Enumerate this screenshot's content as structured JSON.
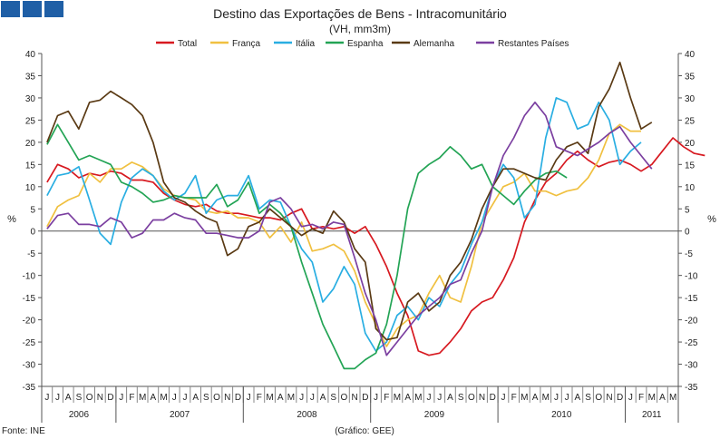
{
  "chart_data": {
    "type": "line",
    "title": "Destino das Exportações de Bens - Intracomunitário",
    "subtitle": "(VH, mm3m)",
    "ylabel_left": "%",
    "ylabel_right": "%",
    "ylim": [
      -35,
      40
    ],
    "yticks": [
      40,
      35,
      30,
      25,
      20,
      15,
      10,
      5,
      0,
      -5,
      -10,
      -15,
      -20,
      -25,
      -30,
      -35
    ],
    "month_letters": [
      "J",
      "J",
      "A",
      "S",
      "O",
      "N",
      "D",
      "J",
      "F",
      "M",
      "A",
      "M",
      "J",
      "J",
      "A",
      "S",
      "O",
      "N",
      "D",
      "J",
      "F",
      "M",
      "A",
      "M",
      "J",
      "J",
      "A",
      "S",
      "O",
      "N",
      "D",
      "J",
      "F",
      "M",
      "A",
      "M",
      "J",
      "J",
      "A",
      "S",
      "O",
      "N",
      "D",
      "J",
      "F",
      "M",
      "A",
      "M",
      "J",
      "J",
      "A",
      "S",
      "O",
      "N",
      "D",
      "J",
      "F",
      "M",
      "A",
      "M"
    ],
    "years": [
      {
        "label": "2006",
        "months": 7
      },
      {
        "label": "2007",
        "months": 12
      },
      {
        "label": "2008",
        "months": 12
      },
      {
        "label": "2009",
        "months": 12
      },
      {
        "label": "2010",
        "months": 12
      },
      {
        "label": "2011",
        "months": 5
      }
    ],
    "series": [
      {
        "name": "Total",
        "color": "#d71920",
        "values": [
          11,
          15,
          14,
          12,
          13,
          12.5,
          13.5,
          13,
          11.5,
          11.5,
          11,
          8.5,
          7,
          6,
          5.5,
          6,
          4.5,
          4,
          4,
          3.5,
          3,
          3,
          2.5,
          4,
          5,
          0.5,
          1,
          0.5,
          1,
          -0.5,
          1,
          -3,
          -8,
          -14,
          -19,
          -27,
          -28,
          -27.5,
          -25,
          -22,
          -18,
          -16,
          -15,
          -11,
          -6,
          2,
          7,
          11,
          13,
          16,
          18,
          16,
          14.5,
          15.5,
          16,
          15,
          13.5,
          15,
          18,
          21,
          19,
          17.5,
          17
        ]
      },
      {
        "name": "França",
        "color": "#f0c040",
        "values": [
          1,
          5.5,
          7,
          8,
          13,
          11,
          14,
          14,
          15.5,
          14.5,
          12.5,
          9.5,
          8,
          7.5,
          7,
          4.5,
          4,
          4.5,
          3,
          3,
          2,
          -1.5,
          1,
          -2.5,
          2,
          -4.5,
          -4,
          -3,
          -4.5,
          -9,
          -16,
          -21,
          -26,
          -22,
          -20,
          -19,
          -14,
          -10,
          -15,
          -16,
          -8,
          2,
          6,
          10,
          11,
          13,
          9,
          9,
          8,
          9,
          9.5,
          12,
          16,
          22,
          24,
          22.5,
          22.5
        ]
      },
      {
        "name": "Itália",
        "color": "#29aee2",
        "values": [
          8,
          12.5,
          13,
          14.5,
          7,
          -0.5,
          -3,
          6.5,
          12,
          14,
          12.5,
          9,
          7,
          8.5,
          12.5,
          4,
          7,
          8,
          8,
          12.5,
          5,
          7,
          6.5,
          1,
          -4,
          -7,
          -16,
          -13,
          -8,
          -12,
          -23,
          -27,
          -25,
          -19,
          -17,
          -20,
          -15,
          -17,
          -12,
          -9,
          -3,
          2,
          10,
          15,
          12,
          3,
          6,
          21,
          30,
          29,
          23,
          24,
          29,
          25,
          15,
          18,
          20
        ]
      },
      {
        "name": "Espanha",
        "color": "#23a455",
        "values": [
          19.5,
          24,
          20,
          16,
          17,
          16,
          15,
          11,
          10,
          8.5,
          6.5,
          7,
          8,
          7.5,
          7.5,
          7.5,
          10.5,
          5.5,
          7,
          11,
          4,
          6,
          4,
          1,
          -7,
          -14,
          -21,
          -26,
          -31,
          -31,
          -29,
          -27.5,
          -21,
          -10,
          5,
          13,
          15,
          16.5,
          19,
          17,
          14,
          15,
          10,
          8,
          6,
          9,
          11.5,
          13,
          13.5,
          12
        ]
      },
      {
        "name": "Alemanha",
        "color": "#5a3a14",
        "values": [
          20,
          26,
          27,
          23,
          29,
          29.5,
          31.5,
          30,
          28.5,
          26,
          20,
          11,
          7.5,
          6.5,
          4.5,
          3,
          2,
          -5.5,
          -4,
          1,
          2,
          5,
          3,
          1,
          -1,
          0.5,
          -0.5,
          4.5,
          2,
          -4,
          -7,
          -22,
          -24.5,
          -24,
          -16,
          -14,
          -18,
          -16,
          -10,
          -7,
          -2,
          5,
          10,
          14,
          14,
          13,
          12,
          11.5,
          16,
          19,
          20,
          17.5,
          28,
          32,
          38,
          30,
          23,
          24.5
        ]
      },
      {
        "name": "Restantes Países",
        "color": "#7b3fa0",
        "values": [
          0.5,
          3.5,
          4,
          1.5,
          1.5,
          1,
          3,
          2,
          -1.5,
          -0.5,
          2.5,
          2.5,
          4,
          3,
          2.5,
          -0.5,
          -0.5,
          -1,
          -1.5,
          -1.5,
          0,
          6.5,
          7.5,
          5,
          1,
          1.5,
          0.5,
          2,
          1.5,
          -6,
          -14,
          -20,
          -28,
          -25,
          -22,
          -19,
          -17,
          -15,
          -12,
          -11,
          -5,
          0,
          10,
          17,
          21,
          26,
          29,
          26,
          19,
          18,
          17,
          18.5,
          20,
          22,
          23.5,
          20,
          17,
          14
        ]
      }
    ]
  },
  "footer": {
    "source": "Fonte: INE",
    "credit": "(Gráfico: GEE)"
  },
  "colors": {
    "header_squares": "#1f5fa6",
    "axis": "#555555",
    "text": "#222222"
  }
}
